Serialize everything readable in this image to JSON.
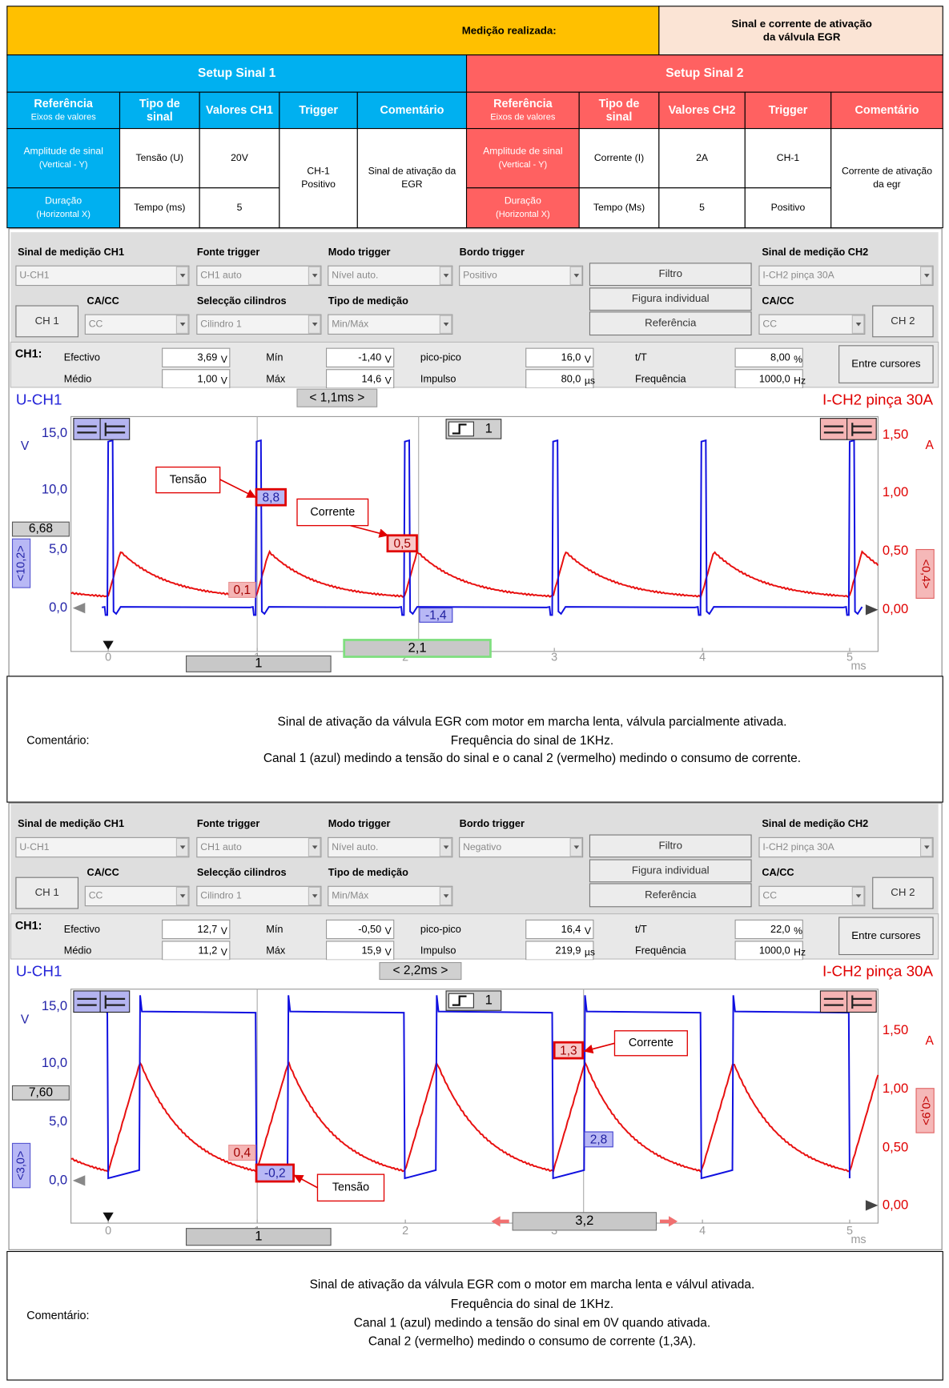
{
  "header": {
    "label": "Medição realizada:",
    "title": [
      "Sinal e corrente de ativação",
      "da válvula EGR"
    ]
  },
  "setup_1": {
    "title": "Setup Sinal 1",
    "columns": [
      [
        "Referência",
        "Eixos de valores"
      ],
      [
        "Tipo de",
        "sinal"
      ],
      [
        "Valores CH1"
      ],
      [
        "Trigger"
      ],
      [
        "Comentário"
      ]
    ],
    "rows": [
      {
        "reference": [
          "Amplitude de sinal",
          "(Vertical - Y)"
        ],
        "signal_type": "Tensão (U)",
        "value": "20V"
      },
      {
        "reference": [
          "Duração",
          "(Horizontal X)"
        ],
        "signal_type": "Tempo (ms)",
        "value": "5"
      }
    ],
    "trigger": [
      "CH-1",
      "Positivo"
    ],
    "comment": [
      "Sinal de ativação da",
      "EGR"
    ]
  },
  "setup_2": {
    "title": "Setup Sinal 2",
    "columns": [
      [
        "Referência",
        "Eixos de valores"
      ],
      [
        "Tipo de",
        "sinal"
      ],
      [
        "Valores CH2"
      ],
      [
        "Trigger"
      ],
      [
        "Comentário"
      ]
    ],
    "rows": [
      {
        "reference": [
          "Amplitude de sinal",
          "(Vertical - Y)"
        ],
        "signal_type": "Corrente (I)",
        "value": "2A",
        "trigger": "CH-1"
      },
      {
        "reference": [
          "Duração",
          "(Horizontal X)"
        ],
        "signal_type": "Tempo (Ms)",
        "value": "5",
        "trigger": "Positivo"
      }
    ],
    "comment": [
      "Corrente de ativação",
      "da egr"
    ]
  },
  "scopes": [
    {
      "controls": {
        "ch1_label": "Sinal de medição CH1",
        "ch1_signal": "U-CH1",
        "ch1_coupling_label": "CA/CC",
        "ch1_button": "CH 1",
        "ch1_coupling": "CC",
        "trigger_source_label": "Fonte trigger",
        "trigger_source": "CH1 auto",
        "cylinder_label": "Selecção cilindros",
        "cylinder": "Cilindro 1",
        "trigger_mode_label": "Modo trigger",
        "trigger_mode": "Nível auto.",
        "measure_type_label": "Tipo de medição",
        "measure_type": "Min/Máx",
        "trigger_edge_label": "Bordo trigger",
        "trigger_edge": "Positivo",
        "filter": "Filtro",
        "single_figure": "Figura individual",
        "reference": "Referência",
        "ch2_label": "Sinal de medição CH2",
        "ch2_signal": "I-CH2 pinça 30A",
        "ch2_coupling_label": "CA/CC",
        "ch2_coupling": "CC",
        "ch2_button": "CH 2"
      },
      "measurements": {
        "channel": "CH1:",
        "rows": [
          [
            {
              "label": "Efectivo",
              "value": "3,69",
              "unit": "V"
            },
            {
              "label": "Mín",
              "value": "-1,40",
              "unit": "V"
            },
            {
              "label": "pico-pico",
              "value": "16,0",
              "unit": "V"
            },
            {
              "label": "t/T",
              "value": "8,00",
              "unit": "%"
            }
          ],
          [
            {
              "label": "Médio",
              "value": "1,00",
              "unit": "V"
            },
            {
              "label": "Máx",
              "value": "14,6",
              "unit": "V"
            },
            {
              "label": "Impulso",
              "value": "80,0",
              "unit": "µs"
            },
            {
              "label": "Frequência",
              "value": "1000,0",
              "unit": "Hz"
            }
          ]
        ],
        "cursor_button": "Entre cursores"
      },
      "graph": {
        "ch1_title": "U-CH1",
        "time_span": "< 1,1ms >",
        "ch2_title": "I-CH2 pinça 30A",
        "y_unit": "V",
        "y2_unit": "A",
        "x_unit": "ms",
        "yticks": [
          "15,0",
          "10,0",
          "5,0",
          "0,0"
        ],
        "y2ticks": [
          "1,50",
          "1,00",
          "0,50",
          "0,00"
        ],
        "xticks": [
          "0",
          "1",
          "2",
          "3",
          "4",
          "5"
        ],
        "level_marker": "6,68",
        "ch1_scale": "<10,2>",
        "ch2_scale": "<0,4>",
        "trigger_channel": "1",
        "cursor_1": "1",
        "cursor_2": "2,1",
        "readouts": [
          "8,8",
          "0,5",
          "0,1",
          "-1,4"
        ],
        "annotations": [
          "Tensão",
          "Corrente"
        ]
      },
      "comment": {
        "label": "Comentário:",
        "lines": [
          "Sinal de ativação da válvula EGR com motor em marcha lenta, válvula parcialmente ativada.",
          "Frequência do sinal de 1KHz.",
          "Canal 1 (azul) medindo a tensão do sinal e o canal 2 (vermelho) medindo o consumo de corrente."
        ]
      }
    },
    {
      "controls": {
        "ch1_label": "Sinal de medição CH1",
        "ch1_signal": "U-CH1",
        "ch1_coupling_label": "CA/CC",
        "ch1_button": "CH 1",
        "ch1_coupling": "CC",
        "trigger_source_label": "Fonte trigger",
        "trigger_source": "CH1 auto",
        "cylinder_label": "Selecção cilindros",
        "cylinder": "Cilindro 1",
        "trigger_mode_label": "Modo trigger",
        "trigger_mode": "Nível auto.",
        "measure_type_label": "Tipo de medição",
        "measure_type": "Min/Máx",
        "trigger_edge_label": "Bordo trigger",
        "trigger_edge": "Negativo",
        "filter": "Filtro",
        "single_figure": "Figura individual",
        "reference": "Referência",
        "ch2_label": "Sinal de medição CH2",
        "ch2_signal": "I-CH2 pinça 30A",
        "ch2_coupling_label": "CA/CC",
        "ch2_coupling": "CC",
        "ch2_button": "CH 2"
      },
      "measurements": {
        "channel": "CH1:",
        "rows": [
          [
            {
              "label": "Efectivo",
              "value": "12,7",
              "unit": "V"
            },
            {
              "label": "Mín",
              "value": "-0,50",
              "unit": "V"
            },
            {
              "label": "pico-pico",
              "value": "16,4",
              "unit": "V"
            },
            {
              "label": "t/T",
              "value": "22,0",
              "unit": "%"
            }
          ],
          [
            {
              "label": "Médio",
              "value": "11,2",
              "unit": "V"
            },
            {
              "label": "Máx",
              "value": "15,9",
              "unit": "V"
            },
            {
              "label": "Impulso",
              "value": "219,9",
              "unit": "µs"
            },
            {
              "label": "Frequência",
              "value": "1000,0",
              "unit": "Hz"
            }
          ]
        ],
        "cursor_button": "Entre cursores"
      },
      "graph": {
        "ch1_title": "U-CH1",
        "time_span": "< 2,2ms >",
        "ch2_title": "I-CH2 pinça 30A",
        "y_unit": "V",
        "y2_unit": "A",
        "x_unit": "ms",
        "yticks": [
          "15,0",
          "10,0",
          "5,0",
          "0,0"
        ],
        "y2ticks": [
          "1,50",
          "1,00",
          "0,50",
          "0,00"
        ],
        "xticks": [
          "0",
          "1",
          "2",
          "3",
          "4",
          "5"
        ],
        "level_marker": "7,60",
        "ch1_scale": "<3,0>",
        "ch2_scale": "<0,9>",
        "trigger_channel": "1",
        "cursor_1": "1",
        "cursor_2": "3,2",
        "readouts": [
          "1,3",
          "2,8",
          "0,4",
          "-0,2"
        ],
        "annotations": [
          "Corrente",
          "Tensão"
        ]
      },
      "comment": {
        "label": "Comentário:",
        "lines": [
          "Sinal de ativação da válvula EGR com o motor em marcha lenta e válvul ativada.",
          "Frequência do sinal de 1KHz.",
          "Canal 1 (azul) medindo a tensão do sinal em 0V quando ativada.",
          "Canal 2 (vermelho) medindo o consumo de corrente (1,3A)."
        ]
      }
    }
  ]
}
